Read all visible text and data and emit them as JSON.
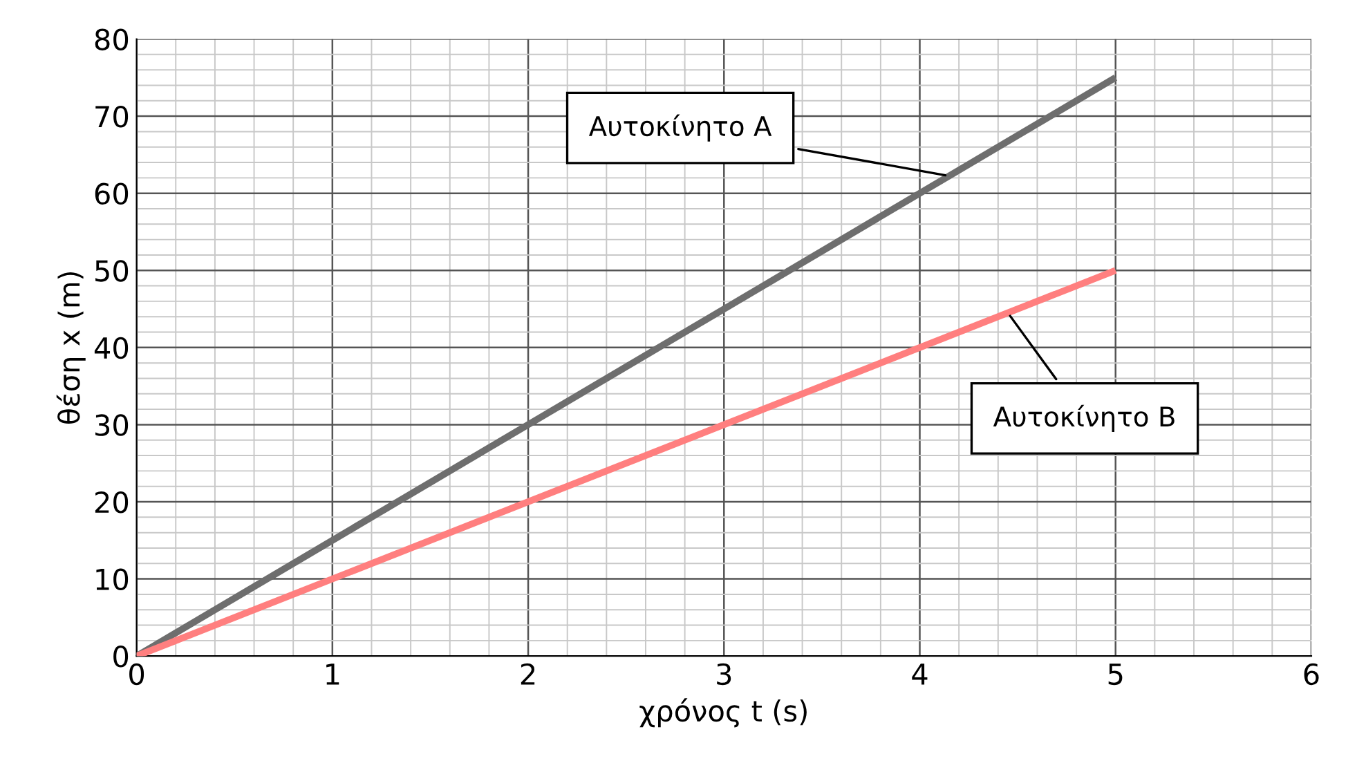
{
  "chart_data": {
    "type": "line",
    "xlabel": "χρόνος t (s)",
    "ylabel": "θέση x (m)",
    "x": [
      0,
      5
    ],
    "series": [
      {
        "color": "#6e6e6e",
        "values": [
          0,
          75
        ]
      },
      {
        "color": "#ff7f7f",
        "values": [
          0,
          50
        ]
      }
    ],
    "xlim": [
      0,
      6
    ],
    "xticks": [
      0,
      1,
      2,
      3,
      4,
      5,
      6
    ],
    "ylim": [
      0,
      80
    ],
    "yticks": [
      0,
      10,
      20,
      30,
      40,
      50,
      60,
      70,
      80
    ],
    "grid": true,
    "marker": "none",
    "line_style": "solid",
    "annotations": [
      {
        "text": "Αυτοκίνητο Α",
        "x": 4.15,
        "y": 62.25
      },
      {
        "text": "Αυτοκίνητο Β",
        "x": 4.45,
        "y": 44.5
      }
    ]
  }
}
